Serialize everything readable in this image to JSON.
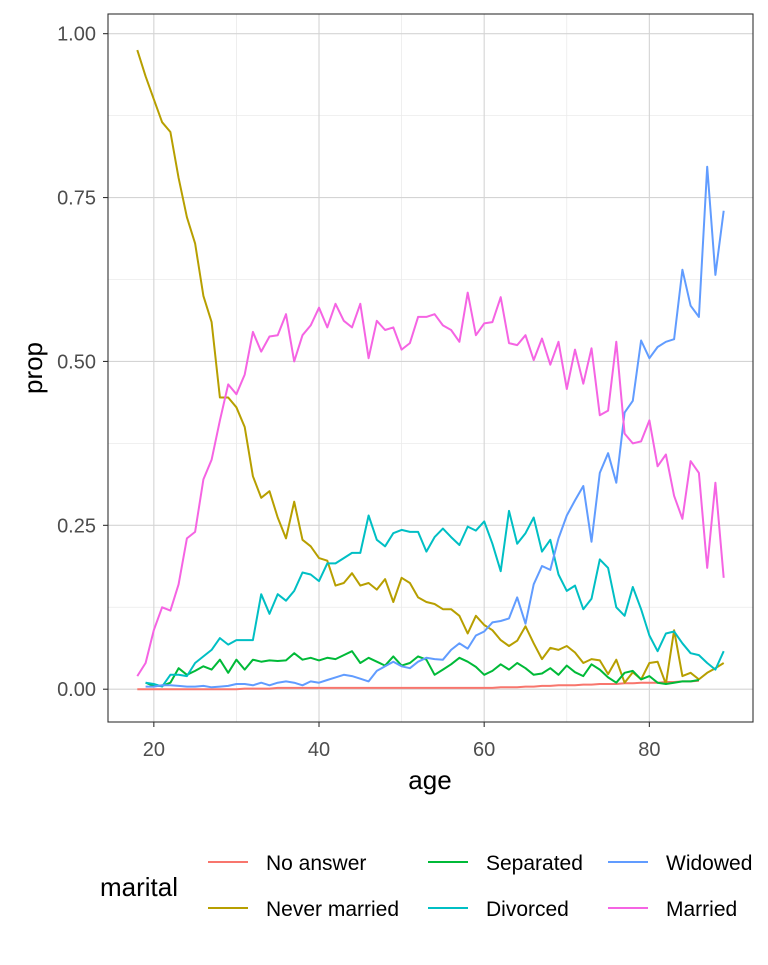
{
  "chart_data": {
    "type": "line",
    "xlabel": "age",
    "ylabel": "prop",
    "xlim": [
      18,
      89
    ],
    "ylim": [
      0,
      1
    ],
    "x_ticks": [
      20,
      40,
      60,
      80
    ],
    "y_ticks": [
      0,
      0.25,
      0.5,
      0.75,
      1.0
    ],
    "x_tick_labels": [
      "20",
      "40",
      "60",
      "80"
    ],
    "y_tick_labels": [
      "0.00",
      "0.25",
      "0.50",
      "0.75",
      "1.00"
    ],
    "grid": true,
    "legend": {
      "title": "marital",
      "position": "bottom",
      "entries": [
        "No answer",
        "Never married",
        "Separated",
        "Divorced",
        "Widowed",
        "Married"
      ]
    },
    "series": [
      {
        "name": "No answer",
        "color": "#F8766D",
        "x": [
          18,
          19,
          20,
          21,
          22,
          23,
          24,
          25,
          26,
          27,
          28,
          29,
          30,
          31,
          32,
          33,
          34,
          35,
          36,
          37,
          38,
          39,
          40,
          41,
          42,
          43,
          44,
          45,
          46,
          47,
          48,
          49,
          50,
          51,
          52,
          53,
          54,
          55,
          56,
          57,
          58,
          59,
          60,
          61,
          62,
          63,
          64,
          65,
          66,
          67,
          68,
          69,
          70,
          71,
          72,
          73,
          74,
          75,
          76,
          77,
          78,
          79,
          80,
          81,
          82,
          83,
          84,
          85,
          86
        ],
        "y": [
          0.0,
          0.0,
          0.0,
          0.0,
          0.0,
          0.0,
          0.0,
          0.0,
          0.0,
          0.0,
          0.0,
          0.0,
          0.0,
          0.001,
          0.001,
          0.001,
          0.001,
          0.002,
          0.002,
          0.002,
          0.002,
          0.002,
          0.002,
          0.002,
          0.002,
          0.002,
          0.002,
          0.002,
          0.002,
          0.002,
          0.002,
          0.002,
          0.002,
          0.002,
          0.002,
          0.002,
          0.002,
          0.002,
          0.002,
          0.002,
          0.002,
          0.002,
          0.002,
          0.002,
          0.003,
          0.003,
          0.003,
          0.004,
          0.004,
          0.005,
          0.005,
          0.006,
          0.006,
          0.006,
          0.007,
          0.007,
          0.008,
          0.008,
          0.008,
          0.009,
          0.009,
          0.01,
          0.01,
          0.01,
          0.011,
          0.011,
          0.012,
          0.012,
          0.013
        ]
      },
      {
        "name": "Never married",
        "color": "#B79F00",
        "x": [
          18,
          19,
          20,
          21,
          22,
          23,
          24,
          25,
          26,
          27,
          28,
          29,
          30,
          31,
          32,
          33,
          34,
          35,
          36,
          37,
          38,
          39,
          40,
          41,
          42,
          43,
          44,
          45,
          46,
          47,
          48,
          49,
          50,
          51,
          52,
          53,
          54,
          55,
          56,
          57,
          58,
          59,
          60,
          61,
          62,
          63,
          64,
          65,
          66,
          67,
          68,
          69,
          70,
          71,
          72,
          73,
          74,
          75,
          76,
          77,
          78,
          79,
          80,
          81,
          82,
          83,
          84,
          85,
          86,
          87,
          88,
          89
        ],
        "y": [
          0.975,
          0.935,
          0.9,
          0.865,
          0.85,
          0.78,
          0.72,
          0.68,
          0.6,
          0.56,
          0.445,
          0.445,
          0.43,
          0.4,
          0.325,
          0.292,
          0.302,
          0.262,
          0.23,
          0.286,
          0.228,
          0.218,
          0.2,
          0.196,
          0.158,
          0.162,
          0.177,
          0.158,
          0.162,
          0.152,
          0.168,
          0.133,
          0.17,
          0.162,
          0.14,
          0.133,
          0.13,
          0.122,
          0.122,
          0.112,
          0.085,
          0.112,
          0.098,
          0.09,
          0.075,
          0.066,
          0.074,
          0.096,
          0.07,
          0.046,
          0.063,
          0.06,
          0.066,
          0.056,
          0.04,
          0.046,
          0.044,
          0.023,
          0.045,
          0.01,
          0.026,
          0.015,
          0.04,
          0.042,
          0.008,
          0.09,
          0.02,
          0.025,
          0.015,
          0.025,
          0.032,
          0.04
        ]
      },
      {
        "name": "Separated",
        "color": "#00BA38",
        "x": [
          19,
          20,
          21,
          22,
          23,
          24,
          25,
          26,
          27,
          28,
          29,
          30,
          31,
          32,
          33,
          34,
          35,
          36,
          37,
          38,
          39,
          40,
          41,
          42,
          43,
          44,
          45,
          46,
          47,
          48,
          49,
          50,
          51,
          52,
          53,
          54,
          55,
          56,
          57,
          58,
          59,
          60,
          61,
          62,
          63,
          64,
          65,
          66,
          67,
          68,
          69,
          70,
          71,
          72,
          73,
          74,
          75,
          76,
          77,
          78,
          79,
          80,
          81,
          82,
          83,
          84,
          85,
          86
        ],
        "y": [
          0.01,
          0.005,
          0.005,
          0.01,
          0.032,
          0.022,
          0.028,
          0.035,
          0.03,
          0.045,
          0.025,
          0.045,
          0.03,
          0.045,
          0.042,
          0.044,
          0.043,
          0.044,
          0.055,
          0.045,
          0.048,
          0.044,
          0.048,
          0.046,
          0.052,
          0.058,
          0.04,
          0.048,
          0.042,
          0.036,
          0.05,
          0.036,
          0.04,
          0.05,
          0.045,
          0.022,
          0.03,
          0.038,
          0.048,
          0.042,
          0.034,
          0.022,
          0.028,
          0.038,
          0.03,
          0.04,
          0.032,
          0.022,
          0.024,
          0.032,
          0.022,
          0.036,
          0.026,
          0.02,
          0.038,
          0.03,
          0.018,
          0.01,
          0.025,
          0.028,
          0.015,
          0.02,
          0.01,
          0.008,
          0.01,
          0.012,
          0.012,
          0.014
        ]
      },
      {
        "name": "Divorced",
        "color": "#00BFC4",
        "x": [
          19,
          20,
          21,
          22,
          23,
          24,
          25,
          26,
          27,
          28,
          29,
          30,
          31,
          32,
          33,
          34,
          35,
          36,
          37,
          38,
          39,
          40,
          41,
          42,
          43,
          44,
          45,
          46,
          47,
          48,
          49,
          50,
          51,
          52,
          53,
          54,
          55,
          56,
          57,
          58,
          59,
          60,
          61,
          62,
          63,
          64,
          65,
          66,
          67,
          68,
          69,
          70,
          71,
          72,
          73,
          74,
          75,
          76,
          77,
          78,
          79,
          80,
          81,
          82,
          83,
          84,
          85,
          86,
          87,
          88,
          89
        ],
        "y": [
          0.01,
          0.008,
          0.004,
          0.022,
          0.022,
          0.02,
          0.04,
          0.05,
          0.06,
          0.078,
          0.068,
          0.075,
          0.075,
          0.075,
          0.145,
          0.115,
          0.145,
          0.135,
          0.15,
          0.178,
          0.175,
          0.165,
          0.192,
          0.192,
          0.2,
          0.208,
          0.208,
          0.265,
          0.228,
          0.218,
          0.238,
          0.243,
          0.24,
          0.24,
          0.21,
          0.232,
          0.245,
          0.232,
          0.22,
          0.248,
          0.242,
          0.256,
          0.222,
          0.18,
          0.272,
          0.222,
          0.238,
          0.262,
          0.21,
          0.228,
          0.175,
          0.15,
          0.158,
          0.122,
          0.138,
          0.198,
          0.185,
          0.125,
          0.112,
          0.156,
          0.122,
          0.082,
          0.058,
          0.085,
          0.088,
          0.07,
          0.055,
          0.052,
          0.04,
          0.03,
          0.058
        ]
      },
      {
        "name": "Widowed",
        "color": "#619CFF",
        "x": [
          19,
          20,
          21,
          22,
          23,
          24,
          25,
          26,
          27,
          28,
          29,
          30,
          31,
          32,
          33,
          34,
          35,
          36,
          37,
          38,
          39,
          40,
          41,
          42,
          43,
          44,
          45,
          46,
          47,
          48,
          49,
          50,
          51,
          52,
          53,
          54,
          55,
          56,
          57,
          58,
          59,
          60,
          61,
          62,
          63,
          64,
          65,
          66,
          67,
          68,
          69,
          70,
          71,
          72,
          73,
          74,
          75,
          76,
          77,
          78,
          79,
          80,
          81,
          82,
          83,
          84,
          85,
          86,
          87,
          88,
          89
        ],
        "y": [
          0.004,
          0.004,
          0.006,
          0.006,
          0.005,
          0.004,
          0.004,
          0.005,
          0.003,
          0.004,
          0.005,
          0.008,
          0.008,
          0.006,
          0.01,
          0.006,
          0.01,
          0.012,
          0.01,
          0.006,
          0.012,
          0.01,
          0.014,
          0.018,
          0.022,
          0.02,
          0.016,
          0.012,
          0.028,
          0.035,
          0.042,
          0.035,
          0.032,
          0.042,
          0.048,
          0.046,
          0.045,
          0.06,
          0.07,
          0.062,
          0.082,
          0.088,
          0.102,
          0.104,
          0.108,
          0.14,
          0.1,
          0.16,
          0.188,
          0.182,
          0.23,
          0.265,
          0.288,
          0.31,
          0.225,
          0.33,
          0.36,
          0.315,
          0.422,
          0.44,
          0.532,
          0.505,
          0.522,
          0.53,
          0.534,
          0.64,
          0.585,
          0.568,
          0.797,
          0.632,
          0.73
        ]
      },
      {
        "name": "Married",
        "color": "#F564E3",
        "x": [
          18,
          19,
          20,
          21,
          22,
          23,
          24,
          25,
          26,
          27,
          28,
          29,
          30,
          31,
          32,
          33,
          34,
          35,
          36,
          37,
          38,
          39,
          40,
          41,
          42,
          43,
          44,
          45,
          46,
          47,
          48,
          49,
          50,
          51,
          52,
          53,
          54,
          55,
          56,
          57,
          58,
          59,
          60,
          61,
          62,
          63,
          64,
          65,
          66,
          67,
          68,
          69,
          70,
          71,
          72,
          73,
          74,
          75,
          76,
          77,
          78,
          79,
          80,
          81,
          82,
          83,
          84,
          85,
          86,
          87,
          88,
          89
        ],
        "y": [
          0.02,
          0.04,
          0.09,
          0.125,
          0.12,
          0.16,
          0.23,
          0.24,
          0.32,
          0.35,
          0.41,
          0.465,
          0.45,
          0.48,
          0.545,
          0.515,
          0.538,
          0.54,
          0.572,
          0.5,
          0.54,
          0.555,
          0.582,
          0.552,
          0.588,
          0.562,
          0.552,
          0.588,
          0.505,
          0.562,
          0.548,
          0.552,
          0.518,
          0.528,
          0.568,
          0.568,
          0.572,
          0.555,
          0.548,
          0.53,
          0.605,
          0.54,
          0.558,
          0.56,
          0.598,
          0.528,
          0.525,
          0.54,
          0.502,
          0.535,
          0.495,
          0.53,
          0.458,
          0.518,
          0.466,
          0.52,
          0.418,
          0.425,
          0.53,
          0.39,
          0.375,
          0.378,
          0.41,
          0.34,
          0.358,
          0.295,
          0.26,
          0.348,
          0.33,
          0.185,
          0.315,
          0.17
        ]
      }
    ]
  }
}
